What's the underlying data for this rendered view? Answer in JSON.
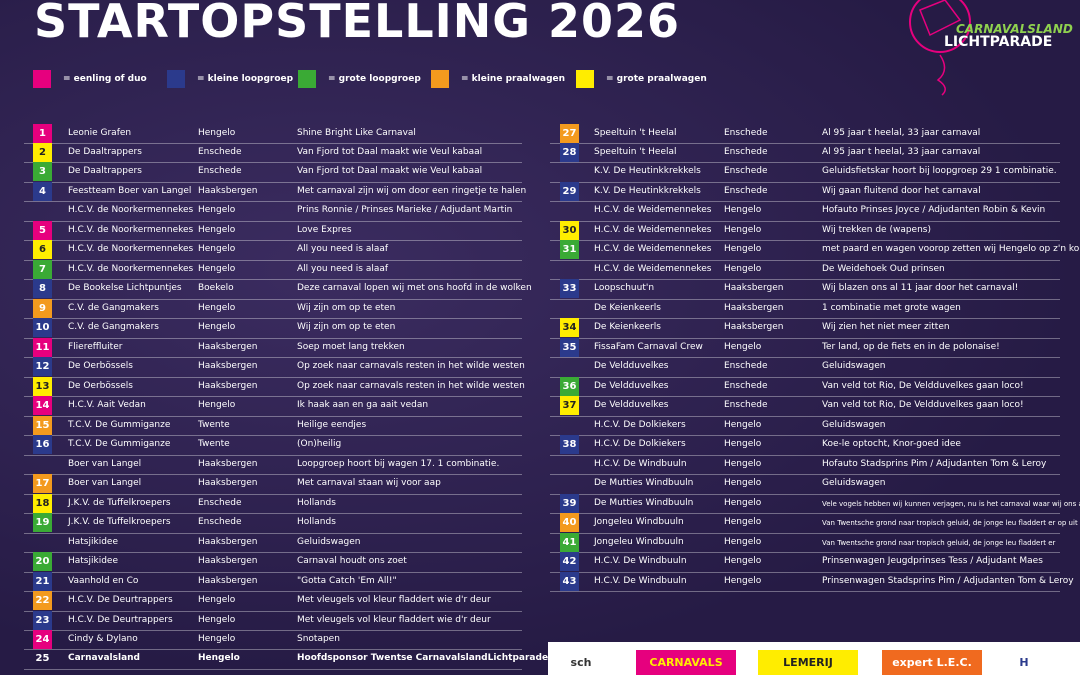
{
  "header": {
    "title": "STARTOPSTELLING 2026",
    "logo_top": "CARNAVALSLAND",
    "logo_bottom": "LICHTPARADE"
  },
  "legend": [
    {
      "color": "#e6007e",
      "label": "= eenling of duo"
    },
    {
      "color": "#2b3a8c",
      "label": "= kleine loopgroep"
    },
    {
      "color": "#3aaa35",
      "label": "= grote loopgroep"
    },
    {
      "color": "#f39a1e",
      "label": "= kleine praalwagen"
    },
    {
      "color": "#ffed00",
      "label": "= grote praalwagen"
    }
  ],
  "left": [
    {
      "number": "1",
      "color": "#e6007e",
      "name": "Leonie Grafen",
      "place": "Hengelo",
      "theme": "Shine Bright Like Carnaval"
    },
    {
      "number": "2",
      "color": "#ffed00",
      "name": "De Daaltrappers",
      "place": "Enschede",
      "theme": "Van Fjord tot Daal maakt wie Veul kabaal"
    },
    {
      "number": "3",
      "color": "#3aaa35",
      "name": "De Daaltrappers",
      "place": "Enschede",
      "theme": "Van Fjord tot Daal maakt wie Veul kabaal"
    },
    {
      "number": "4",
      "color": "#2b3a8c",
      "name": "Feestteam Boer van Langel",
      "place": "Haaksbergen",
      "theme": "Met carnaval zijn wij om door een ringetje te halen"
    },
    {
      "name": "H.C.V. de Noorkermennekes",
      "place": "Hengelo",
      "theme": "Prins Ronnie / Prinses Marieke / Adjudant Martin"
    },
    {
      "number": "5",
      "color": "#e6007e",
      "name": "H.C.V. de Noorkermennekes",
      "place": "Hengelo",
      "theme": "Love Expres"
    },
    {
      "number": "6",
      "color": "#ffed00",
      "name": "H.C.V. de Noorkermennekes",
      "place": "Hengelo",
      "theme": "All you need is alaaf"
    },
    {
      "number": "7",
      "color": "#3aaa35",
      "name": "H.C.V. de Noorkermennekes",
      "place": "Hengelo",
      "theme": "All you need is alaaf"
    },
    {
      "number": "8",
      "color": "#2b3a8c",
      "name": "De Bookelse Lichtpuntjes",
      "place": "Boekelo",
      "theme": "Deze carnaval lopen wij met ons hoofd in de wolken"
    },
    {
      "number": "9",
      "color": "#f39a1e",
      "name": "C.V. de Gangmakers",
      "place": "Hengelo",
      "theme": "Wij zijn om op te eten"
    },
    {
      "number": "10",
      "color": "#2b3a8c",
      "name": "C.V. de Gangmakers",
      "place": "Hengelo",
      "theme": "Wij zijn om op te eten"
    },
    {
      "number": "11",
      "color": "#e6007e",
      "name": "Fliereffluiter",
      "place": "Haaksbergen",
      "theme": "Soep moet lang trekken"
    },
    {
      "number": "12",
      "color": "#2b3a8c",
      "name": "De Oerbössels",
      "place": "Haaksbergen",
      "theme": "Op zoek naar carnavals resten in het wilde westen"
    },
    {
      "number": "13",
      "color": "#ffed00",
      "name": "De Oerbössels",
      "place": "Haaksbergen",
      "theme": "Op zoek naar carnavals resten in het wilde westen"
    },
    {
      "number": "14",
      "color": "#e6007e",
      "name": "H.C.V. Aait Vedan",
      "place": "Hengelo",
      "theme": "Ik haak aan en ga aait vedan"
    },
    {
      "number": "15",
      "color": "#f39a1e",
      "name": "T.C.V. De Gummiganze",
      "place": "Twente",
      "theme": "Heilige eendjes"
    },
    {
      "number": "16",
      "color": "#2b3a8c",
      "name": "T.C.V. De Gummiganze",
      "place": "Twente",
      "theme": "(On)heilig"
    },
    {
      "name": "Boer van Langel",
      "place": "Haaksbergen",
      "theme": "Loopgroep hoort bij wagen 17. 1 combinatie."
    },
    {
      "number": "17",
      "color": "#f39a1e",
      "name": "Boer van Langel",
      "place": "Haaksbergen",
      "theme": "Met carnaval staan wij voor aap"
    },
    {
      "number": "18",
      "color": "#ffed00",
      "name": "J.K.V. de Tuffelkroepers",
      "place": "Enschede",
      "theme": "Hollands"
    },
    {
      "number": "19",
      "color": "#3aaa35",
      "name": "J.K.V. de Tuffelkroepers",
      "place": "Enschede",
      "theme": "Hollands"
    },
    {
      "name": "Hatsjikidee",
      "place": "Haaksbergen",
      "theme": "Geluidswagen"
    },
    {
      "number": "20",
      "color": "#3aaa35",
      "name": "Hatsjikidee",
      "place": "Haaksbergen",
      "theme": "Carnaval houdt ons zoet"
    },
    {
      "number": "21",
      "color": "#2b3a8c",
      "name": "Vaanhold en Co",
      "place": "Haaksbergen",
      "theme": "\"Gotta Catch 'Em All!\""
    },
    {
      "number": "22",
      "color": "#f39a1e",
      "name": "H.C.V. De Deurtrappers",
      "place": "Hengelo",
      "theme": "Met vleugels vol kleur fladdert wie d'r deur"
    },
    {
      "number": "23",
      "color": "#2b3a8c",
      "name": "H.C.V. De Deurtrappers",
      "place": "Hengelo",
      "theme": "Met vleugels vol kleur fladdert wie d'r deur"
    },
    {
      "number": "24",
      "color": "#e6007e",
      "name": "Cindy & Dylano",
      "place": "Hengelo",
      "theme": "Snotapen"
    },
    {
      "number": "25",
      "name": "Carnavalsland",
      "place": "Hengelo",
      "theme": "Hoofdsponsor Twentse CarnavalslandLichtparade",
      "bold": true
    }
  ],
  "right": [
    {
      "number": "27",
      "color": "#f39a1e",
      "name": "Speeltuin 't Heelal",
      "place": "Enschede",
      "theme": "Al 95 jaar t heelal, 33 jaar carnaval"
    },
    {
      "number": "28",
      "color": "#2b3a8c",
      "name": "Speeltuin 't Heelal",
      "place": "Enschede",
      "theme": "Al 95 jaar t heelal, 33 jaar carnaval"
    },
    {
      "name": "K.V. De Heutinkkrekkels",
      "place": "Enschede",
      "theme": "Geluidsfietskar hoort bij loopgroep 29 1 combinatie."
    },
    {
      "number": "29",
      "color": "#2b3a8c",
      "name": "K.V. De Heutinkkrekkels",
      "place": "Enschede",
      "theme": "Wij gaan fluitend door het carnaval"
    },
    {
      "name": "H.C.V. de Weidemennekes",
      "place": "Hengelo",
      "theme": "Hofauto Prinses Joyce / Adjudanten Robin & Kevin"
    },
    {
      "number": "30",
      "color": "#ffed00",
      "name": "H.C.V. de Weidemennekes",
      "place": "Hengelo",
      "theme": "Wij trekken de (wapens)"
    },
    {
      "number": "31",
      "color": "#3aaa35",
      "name": "H.C.V. de Weidemennekes",
      "place": "Hengelo",
      "theme": "met paard en wagen voorop zetten wij Hengelo op z'n kop"
    },
    {
      "name": "H.C.V. de Weidemennekes",
      "place": "Hengelo",
      "theme": "De Weidehoek Oud prinsen"
    },
    {
      "number": "33",
      "color": "#2b3a8c",
      "name": "Loopschuut'n",
      "place": "Haaksbergen",
      "theme": "Wij blazen ons al 11 jaar door het carnaval!"
    },
    {
      "name": "De Keienkeerls",
      "place": "Haaksbergen",
      "theme": "1 combinatie met grote wagen"
    },
    {
      "number": "34",
      "color": "#ffed00",
      "name": "De Keienkeerls",
      "place": "Haaksbergen",
      "theme": "Wij zien het niet meer zitten"
    },
    {
      "number": "35",
      "color": "#2b3a8c",
      "name": "FissaFam Carnaval Crew",
      "place": "Hengelo",
      "theme": "Ter land, op de fiets en in de polonaise!"
    },
    {
      "name": "De Veldduvelkes",
      "place": "Enschede",
      "theme": "Geluidswagen"
    },
    {
      "number": "36",
      "color": "#3aaa35",
      "name": "De Veldduvelkes",
      "place": "Enschede",
      "theme": "Van veld tot Rio, De Veldduvelkes gaan loco!"
    },
    {
      "number": "37",
      "color": "#ffed00",
      "name": "De Veldduvelkes",
      "place": "Enschede",
      "theme": "Van veld tot Rio, De Veldduvelkes gaan loco!"
    },
    {
      "name": "H.C.V. De Dolkiekers",
      "place": "Hengelo",
      "theme": "Geluidswagen"
    },
    {
      "number": "38",
      "color": "#2b3a8c",
      "name": "H.C.V. De Dolkiekers",
      "place": "Hengelo",
      "theme": "Koe-le optocht, Knor-goed idee"
    },
    {
      "name": "H.C.V. De Windbuuln",
      "place": "Hengelo",
      "theme": "Hofauto Stadsprins Pim / Adjudanten Tom & Leroy"
    },
    {
      "name": "De Mutties Windbuuln",
      "place": "Hengelo",
      "theme": "Geluidswagen"
    },
    {
      "number": "39",
      "color": "#2b3a8c",
      "name": "De Mutties Windbuuln",
      "place": "Hengelo",
      "theme": "Vele vogels hebben wij kunnen verjagen, nu is het carnaval waar wij ons aan wagen!",
      "small": true
    },
    {
      "number": "40",
      "color": "#f39a1e",
      "name": "Jongeleu Windbuuln",
      "place": "Hengelo",
      "theme": "Van Twentsche grond naar tropisch geluid, de jonge leu fladdert er op uit",
      "small": true
    },
    {
      "number": "41",
      "color": "#3aaa35",
      "name": "Jongeleu Windbuuln",
      "place": "Hengelo",
      "theme": "Van Twentsche grond naar tropisch geluid, de jonge leu fladdert er",
      "small": true
    },
    {
      "number": "42",
      "color": "#2b3a8c",
      "name": "H.C.V. De Windbuuln",
      "place": "Hengelo",
      "theme": "Prinsenwagen Jeugdprinses Tess / Adjudant Maes"
    },
    {
      "number": "43",
      "color": "#2b3a8c",
      "name": "H.C.V. De Windbuuln",
      "place": "Hengelo",
      "theme": "Prinsenwagen Stadsprins Pim / Adjudanten Tom & Leroy"
    }
  ],
  "sponsors": [
    "sch",
    "CARNAVALS LAND",
    "LEMERIJ",
    "expert L.E.C.",
    "H"
  ]
}
